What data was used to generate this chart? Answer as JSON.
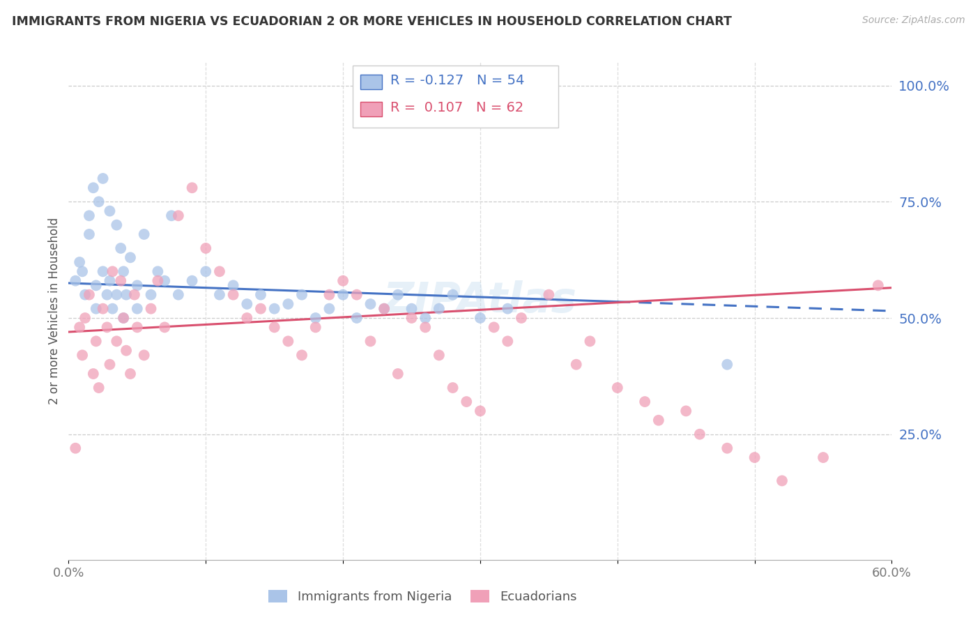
{
  "title": "IMMIGRANTS FROM NIGERIA VS ECUADORIAN 2 OR MORE VEHICLES IN HOUSEHOLD CORRELATION CHART",
  "source": "Source: ZipAtlas.com",
  "ylabel_left": "2 or more Vehicles in Household",
  "legend_label1": "Immigrants from Nigeria",
  "legend_label2": "Ecuadorians",
  "nigeria_R": -0.127,
  "nigeria_N": 54,
  "ecuador_R": 0.107,
  "ecuador_N": 62,
  "nigeria_color": "#aac4e8",
  "ecuador_color": "#f0a0b8",
  "nigeria_line_color": "#4472c4",
  "ecuador_line_color": "#d94f6e",
  "background_color": "#ffffff",
  "right_label_color": "#4472c4",
  "xlim": [
    0.0,
    0.6
  ],
  "ylim": [
    -0.02,
    1.05
  ],
  "nig_line_start_x": 0.0,
  "nig_line_start_y": 0.575,
  "nig_line_solid_end_x": 0.4,
  "nig_line_solid_end_y": 0.535,
  "nig_line_dash_end_x": 0.6,
  "nig_line_dash_end_y": 0.515,
  "ecu_line_start_x": 0.0,
  "ecu_line_start_y": 0.47,
  "ecu_line_end_x": 0.6,
  "ecu_line_end_y": 0.565,
  "nigeria_pts_x": [
    0.005,
    0.008,
    0.01,
    0.012,
    0.015,
    0.015,
    0.018,
    0.02,
    0.02,
    0.022,
    0.025,
    0.025,
    0.028,
    0.03,
    0.03,
    0.032,
    0.035,
    0.035,
    0.038,
    0.04,
    0.04,
    0.042,
    0.045,
    0.05,
    0.05,
    0.055,
    0.06,
    0.065,
    0.07,
    0.075,
    0.08,
    0.09,
    0.1,
    0.11,
    0.12,
    0.13,
    0.14,
    0.15,
    0.16,
    0.17,
    0.18,
    0.19,
    0.2,
    0.21,
    0.22,
    0.23,
    0.24,
    0.25,
    0.26,
    0.27,
    0.28,
    0.3,
    0.32,
    0.48
  ],
  "nigeria_pts_y": [
    0.58,
    0.62,
    0.6,
    0.55,
    0.72,
    0.68,
    0.78,
    0.57,
    0.52,
    0.75,
    0.8,
    0.6,
    0.55,
    0.73,
    0.58,
    0.52,
    0.7,
    0.55,
    0.65,
    0.6,
    0.5,
    0.55,
    0.63,
    0.57,
    0.52,
    0.68,
    0.55,
    0.6,
    0.58,
    0.72,
    0.55,
    0.58,
    0.6,
    0.55,
    0.57,
    0.53,
    0.55,
    0.52,
    0.53,
    0.55,
    0.5,
    0.52,
    0.55,
    0.5,
    0.53,
    0.52,
    0.55,
    0.52,
    0.5,
    0.52,
    0.55,
    0.5,
    0.52,
    0.4
  ],
  "ecuador_pts_x": [
    0.005,
    0.008,
    0.01,
    0.012,
    0.015,
    0.018,
    0.02,
    0.022,
    0.025,
    0.028,
    0.03,
    0.032,
    0.035,
    0.038,
    0.04,
    0.042,
    0.045,
    0.048,
    0.05,
    0.055,
    0.06,
    0.065,
    0.07,
    0.08,
    0.09,
    0.1,
    0.11,
    0.12,
    0.13,
    0.14,
    0.15,
    0.16,
    0.17,
    0.18,
    0.19,
    0.2,
    0.21,
    0.22,
    0.23,
    0.24,
    0.25,
    0.26,
    0.27,
    0.28,
    0.29,
    0.3,
    0.31,
    0.32,
    0.33,
    0.35,
    0.37,
    0.38,
    0.4,
    0.42,
    0.43,
    0.45,
    0.46,
    0.48,
    0.5,
    0.52,
    0.55,
    0.59
  ],
  "ecuador_pts_y": [
    0.22,
    0.48,
    0.42,
    0.5,
    0.55,
    0.38,
    0.45,
    0.35,
    0.52,
    0.48,
    0.4,
    0.6,
    0.45,
    0.58,
    0.5,
    0.43,
    0.38,
    0.55,
    0.48,
    0.42,
    0.52,
    0.58,
    0.48,
    0.72,
    0.78,
    0.65,
    0.6,
    0.55,
    0.5,
    0.52,
    0.48,
    0.45,
    0.42,
    0.48,
    0.55,
    0.58,
    0.55,
    0.45,
    0.52,
    0.38,
    0.5,
    0.48,
    0.42,
    0.35,
    0.32,
    0.3,
    0.48,
    0.45,
    0.5,
    0.55,
    0.4,
    0.45,
    0.35,
    0.32,
    0.28,
    0.3,
    0.25,
    0.22,
    0.2,
    0.15,
    0.2,
    0.57
  ]
}
